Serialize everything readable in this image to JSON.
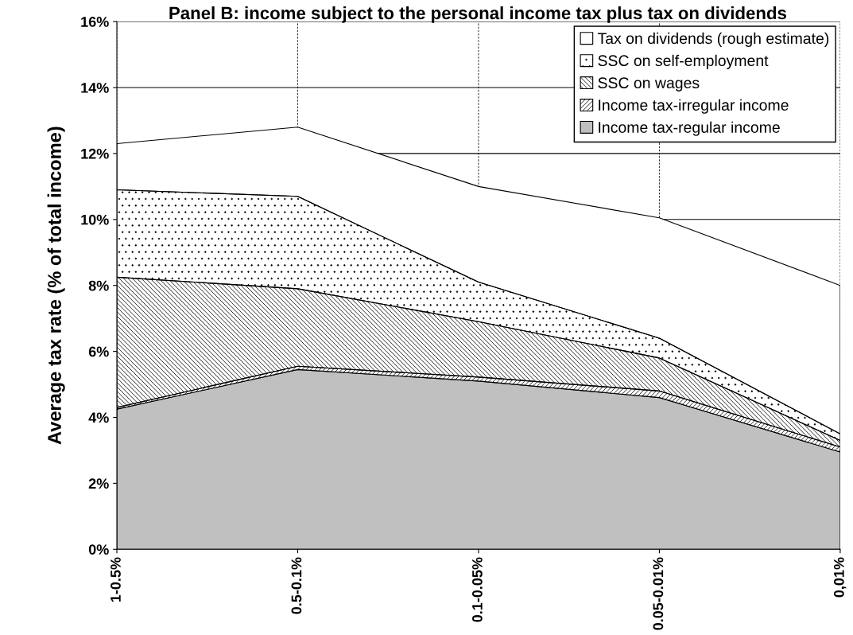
{
  "chart_data": {
    "type": "area",
    "stacked": true,
    "title": "Panel B: income subject to the personal income tax plus tax on dividends",
    "ylabel": "Average tax rate (% of total income)",
    "categories": [
      "1-0.5%",
      "0.5-0.1%",
      "0.1-0.05%",
      "0.05-0.01%",
      "0,01%"
    ],
    "series": [
      {
        "name": "Income tax-regular income",
        "color": "#c0c0c0",
        "values": [
          4.25,
          5.45,
          5.1,
          4.6,
          2.95
        ]
      },
      {
        "name": "Income tax-irregular income",
        "color": "#000000",
        "values": [
          0.05,
          0.1,
          0.12,
          0.2,
          0.15
        ]
      },
      {
        "name": "SSC on wages",
        "color": "#000000",
        "values": [
          3.95,
          2.35,
          1.68,
          1.0,
          0.2
        ]
      },
      {
        "name": "SSC on self-employment",
        "color": "#000000",
        "values": [
          2.65,
          2.8,
          1.2,
          0.6,
          0.2
        ]
      },
      {
        "name": "Tax on dividends (rough estimate)",
        "color": "#ffffff",
        "values": [
          1.4,
          2.1,
          2.9,
          3.65,
          4.5
        ]
      }
    ],
    "ylim": [
      0,
      16
    ],
    "yticks": [
      {
        "value": 0,
        "label": "0%"
      },
      {
        "value": 2,
        "label": "2%"
      },
      {
        "value": 4,
        "label": "4%"
      },
      {
        "value": 6,
        "label": "6%"
      },
      {
        "value": 8,
        "label": "8%"
      },
      {
        "value": 10,
        "label": "10%"
      },
      {
        "value": 12,
        "label": "12%"
      },
      {
        "value": 14,
        "label": "14%"
      },
      {
        "value": 16,
        "label": "16%"
      }
    ],
    "grid": true,
    "legend": "top right"
  }
}
